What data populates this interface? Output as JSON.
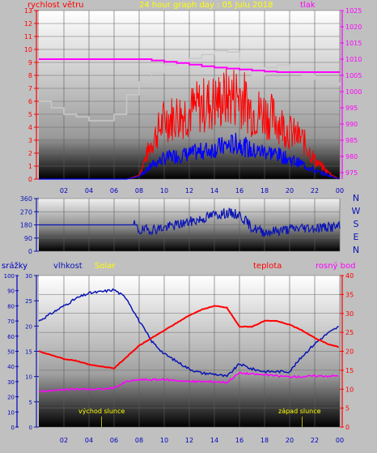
{
  "title": "24 hour graph day : 05 Julu 2018",
  "colors": {
    "background": "#c0c0c0",
    "wind": "#ff0000",
    "wind_avg": "#0000ff",
    "pressure": "#ff00ff",
    "pressure_axis": "#ff00ff",
    "title": "#ffff00",
    "gust_gray": "#c8c8c8",
    "direction": "#0a14b4",
    "rain": "#0000c0",
    "humidity": "#0a14b4",
    "solar": "#ffff00",
    "temperature": "#ff0000",
    "dewpoint": "#ff00ff",
    "sunmarker": "#b4b400"
  },
  "x_ticks": [
    "02",
    "04",
    "06",
    "08",
    "10",
    "12",
    "14",
    "16",
    "18",
    "20",
    "22",
    "00"
  ],
  "chart_data": [
    {
      "type": "line",
      "name": "wind-pressure",
      "title": "24 hour graph day : 05 Julu 2018",
      "left_label": "rychlost větru",
      "right_label": "tlak",
      "x": [
        0,
        1,
        2,
        3,
        4,
        5,
        6,
        7,
        8,
        9,
        10,
        11,
        12,
        13,
        14,
        15,
        16,
        17,
        18,
        19,
        20,
        21,
        22,
        23,
        24
      ],
      "ylim_left": [
        0,
        13
      ],
      "yticks_left": [
        "0",
        "1",
        "2",
        "3",
        "4",
        "5",
        "6",
        "7",
        "8",
        "9",
        "10",
        "11",
        "12",
        "13"
      ],
      "ylim_right": [
        973,
        1025
      ],
      "yticks_right": [
        "975",
        "980",
        "985",
        "990",
        "995",
        "1000",
        "1005",
        "1010",
        "1015",
        "1020",
        "1025"
      ],
      "series": [
        {
          "values": [
            6,
            5.5,
            5,
            4.8,
            4.5,
            4.5,
            5,
            6.5,
            7.5,
            8.2,
            8.8,
            9,
            9.3,
            9.6,
            9.9,
            9.8,
            8.5,
            8,
            8.6,
            8.8,
            8.4,
            8,
            7.7,
            7.4,
            7.2
          ]
        },
        {
          "values": [
            0,
            0,
            0,
            0,
            0,
            0,
            0,
            0,
            0.3,
            2.5,
            4,
            4.3,
            4.6,
            5,
            5.2,
            5.5,
            5.8,
            4.6,
            4.5,
            4,
            3.2,
            2.7,
            1.3,
            0.5,
            0
          ]
        },
        {
          "values": [
            0,
            0,
            0,
            0,
            0,
            0,
            0,
            0,
            0.2,
            1,
            1.5,
            1.7,
            1.8,
            2,
            2.2,
            2.4,
            2.6,
            2,
            2,
            1.8,
            1.4,
            1.1,
            0.6,
            0.3,
            0
          ]
        },
        {
          "values": [
            1010,
            1010,
            1010,
            1010,
            1010,
            1010,
            1010,
            1010,
            1010,
            1009.6,
            1009.2,
            1008.8,
            1008.3,
            1007.8,
            1007.4,
            1007.1,
            1006.8,
            1006.5,
            1006.2,
            1006,
            1006,
            1006,
            1006,
            1006,
            1006
          ]
        }
      ]
    },
    {
      "type": "line",
      "name": "wind-direction",
      "right_label": "N W S E N",
      "ylim": [
        0,
        360
      ],
      "yticks": [
        "0",
        "90",
        "180",
        "270",
        "360"
      ],
      "x": [
        0,
        2,
        4,
        6,
        7,
        7.6,
        8,
        9,
        10,
        11,
        12,
        13,
        14,
        15,
        16,
        17,
        18,
        19,
        20,
        21,
        22,
        23,
        24
      ],
      "values": [
        180,
        180,
        180,
        180,
        180,
        180,
        140,
        150,
        160,
        180,
        200,
        220,
        250,
        260,
        250,
        160,
        130,
        140,
        150,
        160,
        160,
        165,
        165
      ]
    },
    {
      "type": "line",
      "name": "rain-humidity-solar-temp-dew",
      "labels": [
        "srážky",
        "vlhkost",
        "Solar",
        "teplota",
        "rosný bod"
      ],
      "ylim_rain": [
        0,
        100
      ],
      "yticks_rain": [
        "0",
        "10",
        "20",
        "30",
        "40",
        "50",
        "60",
        "70",
        "80",
        "90",
        "100"
      ],
      "ylim_humidity": [
        0,
        30
      ],
      "yticks_humidity": [
        "0",
        "5",
        "10",
        "15",
        "20",
        "25",
        "30"
      ],
      "ylim_temp": [
        0,
        40
      ],
      "yticks_temp": [
        "0",
        "5",
        "10",
        "15",
        "20",
        "25",
        "30",
        "35",
        "40"
      ],
      "x": [
        0,
        1,
        2,
        3,
        4,
        5,
        6,
        7,
        8,
        9,
        10,
        11,
        12,
        13,
        14,
        15,
        16,
        17,
        18,
        19,
        20,
        21,
        22,
        23,
        24
      ],
      "series": [
        {
          "values": [
            21,
            22.5,
            24,
            25.5,
            26.5,
            26.8,
            27.2,
            25.5,
            21,
            17,
            14.5,
            13,
            11.5,
            10.7,
            10.5,
            10,
            12.5,
            11.5,
            11,
            11,
            11,
            14,
            16.5,
            18.5,
            20
          ]
        },
        {
          "values": [
            20,
            19,
            18,
            17.5,
            16.5,
            16,
            15.5,
            18.5,
            21.5,
            23.5,
            25.5,
            27.5,
            29.5,
            31,
            32,
            31.5,
            26.5,
            26.5,
            28,
            28,
            27,
            25.5,
            23.5,
            22,
            21
          ]
        },
        {
          "values": [
            9.5,
            9.6,
            9.8,
            10,
            10,
            10,
            10.3,
            12,
            12.5,
            12.5,
            12.5,
            12.3,
            12,
            12,
            12,
            11.8,
            14.3,
            14,
            13.8,
            13.5,
            13.3,
            13.3,
            13.5,
            13.5,
            13.5
          ]
        }
      ],
      "annotations": [
        "východ slunce",
        "západ slunce"
      ]
    }
  ]
}
